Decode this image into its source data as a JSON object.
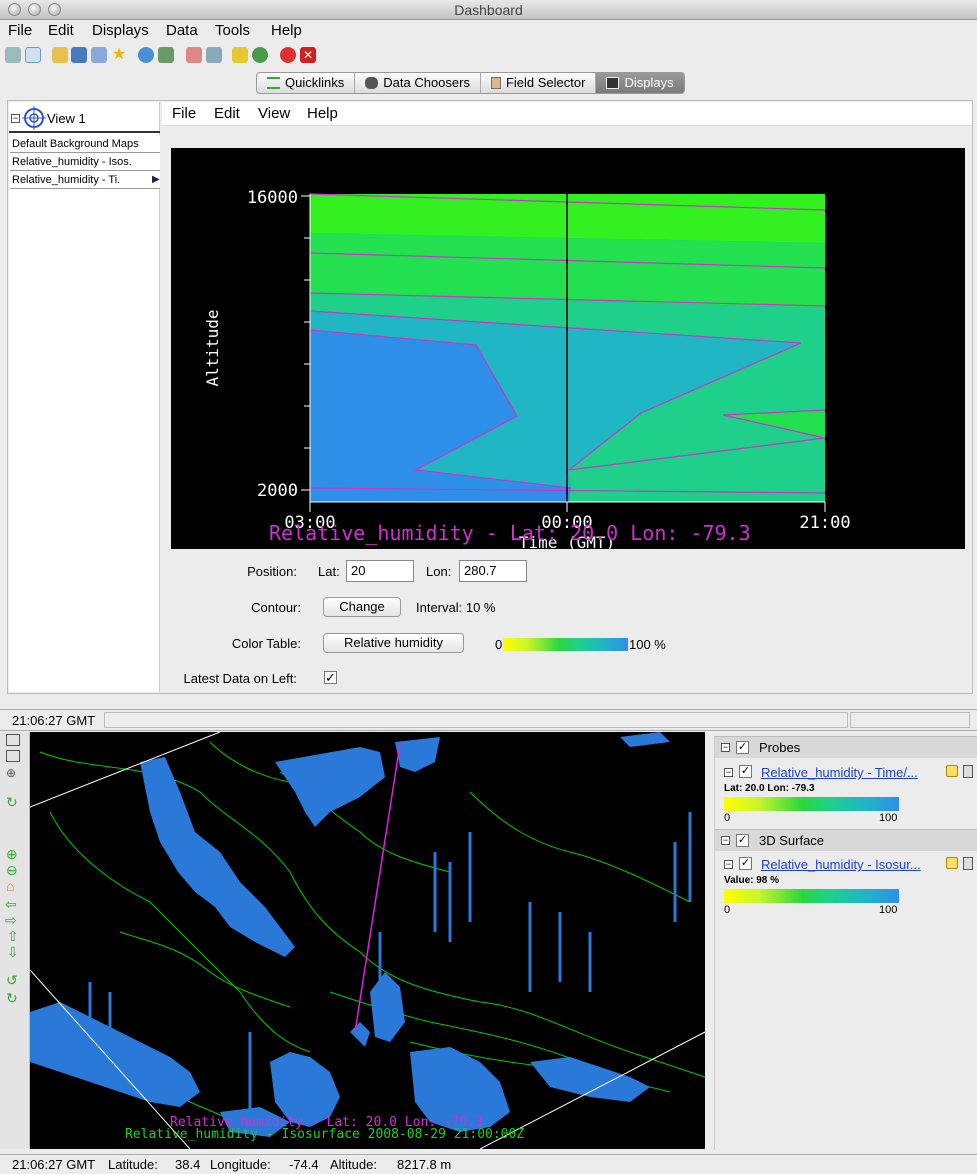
{
  "window": {
    "title": "Dashboard"
  },
  "menubar": [
    "File",
    "Edit",
    "Displays",
    "Data",
    "Tools",
    "Help"
  ],
  "tabs": [
    {
      "label": "Quicklinks",
      "icon": "lines-icon",
      "selected": false
    },
    {
      "label": "Data Choosers",
      "icon": "binoculars-icon",
      "selected": false
    },
    {
      "label": "Field Selector",
      "icon": "clipboard-icon",
      "selected": false
    },
    {
      "label": "Displays",
      "icon": "monitor-icon",
      "selected": true
    }
  ],
  "tree": {
    "view_label": "View 1",
    "items": [
      "Default Background Maps",
      "Relative_humidity - Isos.",
      "Relative_humidity - Ti."
    ]
  },
  "view_menu": [
    "File",
    "Edit",
    "View",
    "Help"
  ],
  "plot": {
    "y_label": "Altitude",
    "y_ticks": [
      "16000",
      "2000"
    ],
    "x_ticks": [
      "03:00",
      "00:00",
      "21:00"
    ],
    "x_label": "Time (GMT)",
    "overlay_text": "Relative_humidity - Lat: 20.0 Lon: -79.3"
  },
  "controls": {
    "position_label": "Position:",
    "lat_label": "Lat:",
    "lat_value": "20",
    "lon_label": "Lon:",
    "lon_value": "280.7",
    "contour_label": "Contour:",
    "change_button": "Change",
    "interval_text": "Interval: 10 %",
    "colortable_label": "Color Table:",
    "colortable_button": "Relative humidity",
    "scale_min": "0",
    "scale_max": "100 %",
    "latest_label": "Latest Data on Left:",
    "latest_checked": true
  },
  "status_top": {
    "time": "21:06:27 GMT"
  },
  "map": {
    "line1": "Relative_humidity - Lat: 20.0 Lon: -79.3",
    "line2": "Relative_humidity - Isosurface 2008-08-29 21:00:00Z"
  },
  "legend": {
    "probes_header": "Probes",
    "probe_link": "Relative_humidity - Time/...",
    "probe_info": "Lat: 20.0 Lon: -79.3",
    "probe_min": "0",
    "probe_max": "100",
    "surface_header": "3D Surface",
    "surface_link": "Relative_humidity - Isosur...",
    "surface_info": "Value: 98 %",
    "surface_min": "0",
    "surface_max": "100"
  },
  "status_bottom": {
    "time": "21:06:27 GMT",
    "latitude_label": "Latitude:",
    "latitude": "38.4",
    "longitude_label": "Longitude:",
    "longitude": "-74.4",
    "altitude_label": "Altitude:",
    "altitude": "8217.8 m"
  },
  "colors": {
    "plot_bg": "#000000",
    "contour_line": "#cc33cc",
    "green_fill": "#2ad63e",
    "blue_fill": "#2e8fe8",
    "coast": "#00cc00"
  }
}
